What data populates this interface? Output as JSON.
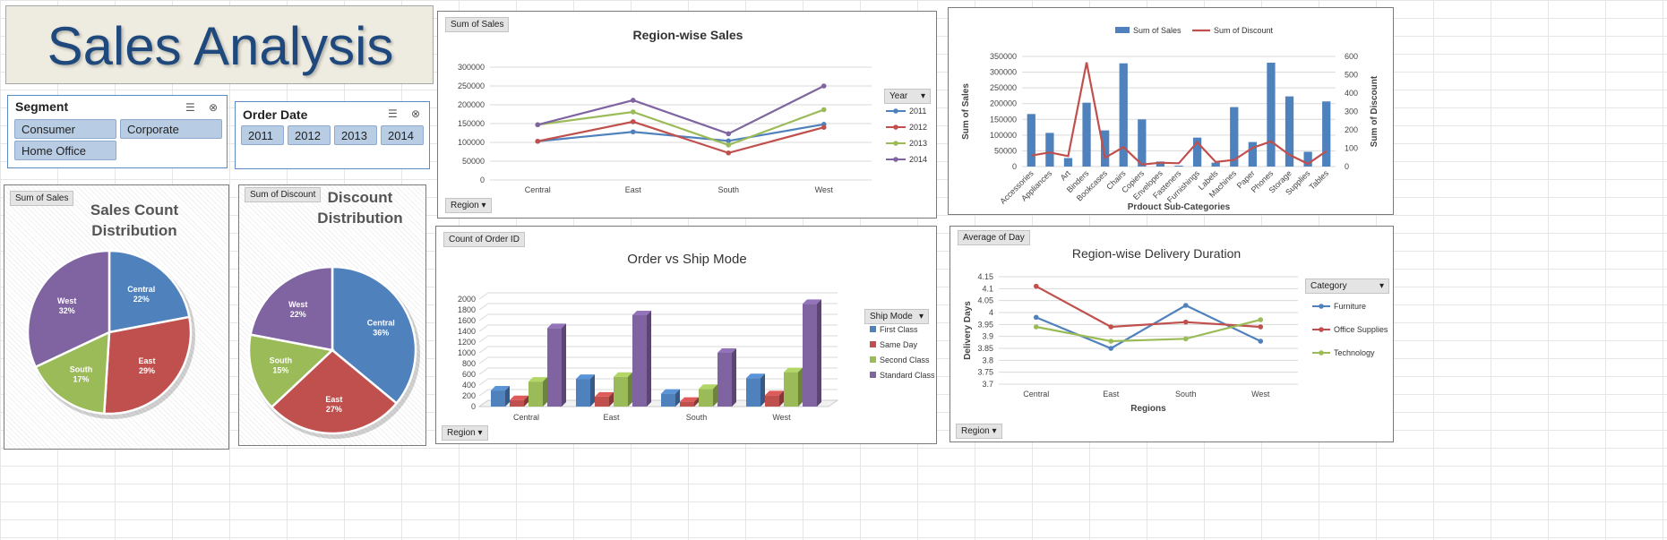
{
  "header": {
    "title": "Sales Analysis"
  },
  "segment_slicer": {
    "title": "Segment",
    "items": [
      "Consumer",
      "Corporate",
      "Home Office"
    ],
    "icons": [
      "multi-select-icon",
      "clear-filter-icon"
    ]
  },
  "date_slicer": {
    "title": "Order Date",
    "items": [
      "2011",
      "2012",
      "2013",
      "2014"
    ],
    "icons": [
      "multi-select-icon",
      "clear-filter-icon"
    ]
  },
  "colors": {
    "blue": "#4f81bd",
    "red": "#c0504d",
    "green": "#9bbb59",
    "purple": "#8064a2",
    "banner_bg": "#eeece1",
    "slicer_btn": "#b8cce4",
    "title_blue": "#1f497d"
  },
  "region_sales": {
    "field_button": "Sum of Sales",
    "axis_button": "Region",
    "legend_button": "Year",
    "chart_data": {
      "type": "line",
      "title": "Region-wise Sales",
      "categories": [
        "Central",
        "East",
        "South",
        "West"
      ],
      "ylim": [
        0,
        300000
      ],
      "yticks": [
        "0",
        "50000",
        "100000",
        "150000",
        "200000",
        "250000",
        "300000"
      ],
      "series": [
        {
          "name": "2011",
          "color": "#4f81bd",
          "values": [
            103000,
            128000,
            104000,
            148000
          ]
        },
        {
          "name": "2012",
          "color": "#c0504d",
          "values": [
            103000,
            155000,
            72000,
            140000
          ]
        },
        {
          "name": "2013",
          "color": "#9bbb59",
          "values": [
            147000,
            181000,
            93000,
            187000
          ]
        },
        {
          "name": "2014",
          "color": "#8064a2",
          "values": [
            147000,
            212000,
            123000,
            250000
          ]
        }
      ]
    }
  },
  "subcat": {
    "chart_data": {
      "type": "bar",
      "title": "",
      "xlabel": "Prdouct Sub-Categories",
      "ylabel": "Sum of Sales",
      "y2label": "Sum of Discount",
      "categories": [
        "Accessories",
        "Appliances",
        "Art",
        "Binders",
        "Bookcases",
        "Chairs",
        "Copiers",
        "Envelopes",
        "Fasteners",
        "Furnishings",
        "Labels",
        "Machines",
        "Paper",
        "Phones",
        "Storage",
        "Supplies",
        "Tables"
      ],
      "ylim": [
        0,
        350000
      ],
      "yticks": [
        "0",
        "50000",
        "100000",
        "150000",
        "200000",
        "250000",
        "300000",
        "350000"
      ],
      "y2lim": [
        0,
        600
      ],
      "y2ticks": [
        "0",
        "100",
        "200",
        "300",
        "400",
        "500",
        "600"
      ],
      "series": [
        {
          "name": "Sum of Sales",
          "type": "bar",
          "axis": "left",
          "color": "#4f81bd",
          "values": [
            167000,
            107000,
            27000,
            203000,
            115000,
            328000,
            150000,
            16000,
            3000,
            92000,
            12500,
            189000,
            78000,
            330000,
            223000,
            47000,
            207000
          ]
        },
        {
          "name": "Sum of Discount",
          "type": "line",
          "axis": "right",
          "color": "#c0504d",
          "values": [
            60,
            77,
            57,
            567,
            48,
            106,
            11,
            21,
            18,
            132,
            25,
            36,
            102,
            137,
            64,
            15,
            84
          ]
        }
      ]
    }
  },
  "sales_pie": {
    "field_button": "Sum of Sales",
    "chart_data": {
      "type": "pie",
      "title": "Sales Count Distribution",
      "labels": [
        "Central",
        "East",
        "South",
        "West"
      ],
      "values": [
        22,
        29,
        17,
        32
      ],
      "value_labels": [
        "22%",
        "29%",
        "17%",
        "32%"
      ],
      "colors": [
        "#4f81bd",
        "#c0504d",
        "#9bbb59",
        "#8064a2"
      ]
    }
  },
  "discount_pie": {
    "field_button": "Sum of Discount",
    "chart_data": {
      "type": "pie",
      "title": "Discount Distribution",
      "labels": [
        "Central",
        "East",
        "South",
        "West"
      ],
      "values": [
        36,
        27,
        15,
        22
      ],
      "value_labels": [
        "36%",
        "27%",
        "15%",
        "22%"
      ],
      "colors": [
        "#4f81bd",
        "#c0504d",
        "#9bbb59",
        "#8064a2"
      ]
    }
  },
  "ship_mode": {
    "field_button": "Count of Order ID",
    "axis_button": "Region",
    "legend_button": "Ship Mode",
    "chart_data": {
      "type": "bar",
      "title": "Order vs Ship Mode",
      "categories": [
        "Central",
        "East",
        "South",
        "West"
      ],
      "ylim": [
        0,
        2000
      ],
      "yticks": [
        "0",
        "200",
        "400",
        "600",
        "800",
        "1000",
        "1200",
        "1400",
        "1600",
        "1800",
        "2000"
      ],
      "series": [
        {
          "name": "First Class",
          "color": "#4f81bd",
          "values": [
            299,
            515,
            240,
            530
          ]
        },
        {
          "name": "Same Day",
          "color": "#c0504d",
          "values": [
            120,
            185,
            90,
            210
          ]
        },
        {
          "name": "Second Class",
          "color": "#9bbb59",
          "values": [
            465,
            555,
            330,
            640
          ]
        },
        {
          "name": "Standard Class",
          "color": "#8064a2",
          "values": [
            1460,
            1700,
            1000,
            1910
          ]
        }
      ]
    }
  },
  "delivery": {
    "field_button": "Average of Day",
    "axis_button": "Region",
    "legend_button": "Category",
    "chart_data": {
      "type": "line",
      "title": "Region-wise Delivery Duration",
      "xlabel": "Regions",
      "ylabel": "Delivery Days",
      "categories": [
        "Central",
        "East",
        "South",
        "West"
      ],
      "ylim": [
        3.7,
        4.15
      ],
      "yticks": [
        "3.7",
        "3.75",
        "3.8",
        "3.85",
        "3.9",
        "3.95",
        "4",
        "4.05",
        "4.1",
        "4.15"
      ],
      "series": [
        {
          "name": "Furniture",
          "color": "#4f81bd",
          "values": [
            3.98,
            3.85,
            4.03,
            3.88
          ]
        },
        {
          "name": "Office Supplies",
          "color": "#c0504d",
          "values": [
            4.11,
            3.94,
            3.96,
            3.94
          ]
        },
        {
          "name": "Technology",
          "color": "#9bbb59",
          "values": [
            3.94,
            3.88,
            3.89,
            3.97
          ]
        }
      ]
    }
  }
}
